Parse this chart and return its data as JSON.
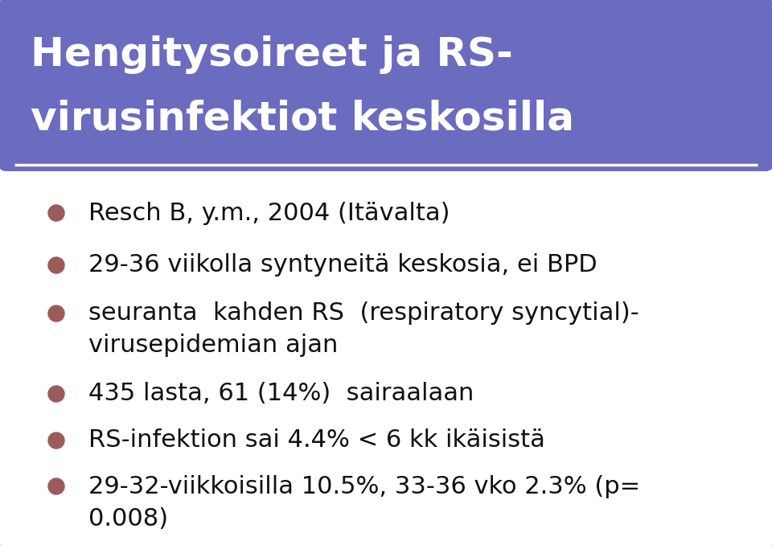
{
  "title_line1": "Hengitysoireet ja RS-",
  "title_line2": "virusinfektiot keskosilla",
  "title_bg_color": "#6B6BBF",
  "title_text_color": "#ffffff",
  "body_bg_color": "#ffffff",
  "border_color": "#6AADAD",
  "bullet_color": "#9B5B5B",
  "bullet_points_line1": [
    "Resch B, y.m., 2004 (Itävalta)",
    "29-36 viikolla syntyneitä keskosia, ei BPD",
    "seuranta  kahden RS  (respiratory syncytial)-",
    "435 lasta, 61 (14%)  sairaalaan",
    "RS-infektion sai 4.4% < 6 kk ikäisistä",
    "29-32-viikkoisilla 10.5%, 33-36 vko 2.3% (p="
  ],
  "bullet_points_line2": [
    "",
    "",
    "virusepidemian ajan",
    "",
    "",
    "0.008)"
  ],
  "has_bullet": [
    true,
    true,
    true,
    true,
    true,
    true
  ],
  "body_text_color": "#111111",
  "font_size_title": 36,
  "font_size_body": 22,
  "title_underline_color": "#ffffff",
  "fig_width": 9.6,
  "fig_height": 6.78,
  "dpi": 100
}
